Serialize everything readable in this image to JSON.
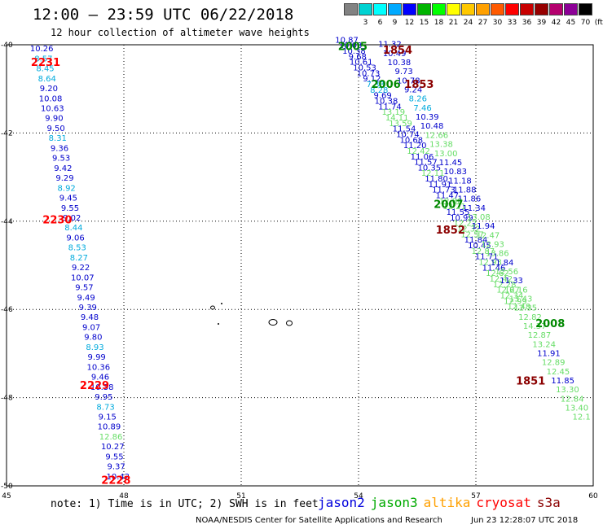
{
  "title": "12:00 – 23:59 UTC 06/22/2018",
  "subtitle": "12 hour collection of altimeter wave heights",
  "scale": {
    "unit_label": "(ft)",
    "cells": [
      {
        "label": "",
        "color": "#828282"
      },
      {
        "label": "3",
        "color": "#00d2d2"
      },
      {
        "label": "6",
        "color": "#00ffff"
      },
      {
        "label": "9",
        "color": "#00aaff"
      },
      {
        "label": "12",
        "color": "#0000ff"
      },
      {
        "label": "15",
        "color": "#00b400"
      },
      {
        "label": "18",
        "color": "#00ff00"
      },
      {
        "label": "21",
        "color": "#ffff00"
      },
      {
        "label": "24",
        "color": "#ffc800"
      },
      {
        "label": "27",
        "color": "#ffa000"
      },
      {
        "label": "30",
        "color": "#ff5a00"
      },
      {
        "label": "33",
        "color": "#ff0000"
      },
      {
        "label": "36",
        "color": "#c80000"
      },
      {
        "label": "39",
        "color": "#960000"
      },
      {
        "label": "42",
        "color": "#b4006e"
      },
      {
        "label": "45",
        "color": "#8c0096"
      },
      {
        "label": "70",
        "color": "#000000"
      }
    ]
  },
  "axes": {
    "lon_ticks": [
      "45",
      "48",
      "51",
      "54",
      "57",
      "60"
    ],
    "lat_ticks": [
      "-40",
      "-42",
      "-44",
      "-46",
      "-48",
      "-50"
    ]
  },
  "note": "note:  1) Time is in UTC; 2) SWH is in feet",
  "legend": [
    {
      "name": "jason2",
      "color": "#0000dd"
    },
    {
      "name": "jason3",
      "color": "#00aa00"
    },
    {
      "name": "altika",
      "color": "#ffa000"
    },
    {
      "name": "cryosat",
      "color": "#ff0000"
    },
    {
      "name": "s3a",
      "color": "#8b0000"
    }
  ],
  "credit": "NOAA/NESDIS Center for Satellite Applications and Research",
  "stamp": "Jun 23 12:28:07 UTC 2018",
  "colors": {
    "c": "#00aadd",
    "b": "#0000cc",
    "n": "#000080",
    "g": "#66dd66",
    "gd": "#008800",
    "r": "#ff0000",
    "m": "#8b0000"
  },
  "time_labels": [
    {
      "text": "2231",
      "lon": 46.0,
      "lat": -40.48,
      "c": "r"
    },
    {
      "text": "2230",
      "lon": 46.3,
      "lat": -44.05,
      "c": "r"
    },
    {
      "text": "2229",
      "lon": 47.25,
      "lat": -47.8,
      "c": "r"
    },
    {
      "text": "2228",
      "lon": 47.8,
      "lat": -49.95,
      "c": "r"
    },
    {
      "text": "2005",
      "lon": 53.85,
      "lat": -40.12,
      "c": "gd"
    },
    {
      "text": "2006",
      "lon": 54.7,
      "lat": -40.98,
      "c": "gd"
    },
    {
      "text": "1854",
      "lon": 55.0,
      "lat": -40.2,
      "c": "m"
    },
    {
      "text": "1853",
      "lon": 55.55,
      "lat": -40.98,
      "c": "m"
    },
    {
      "text": "2007",
      "lon": 56.3,
      "lat": -43.7,
      "c": "gd"
    },
    {
      "text": "1852",
      "lon": 56.35,
      "lat": -44.28,
      "c": "m"
    },
    {
      "text": "2008",
      "lon": 58.9,
      "lat": -46.4,
      "c": "gd"
    },
    {
      "text": "1851",
      "lon": 58.4,
      "lat": -47.7,
      "c": "m"
    }
  ],
  "tracks": [
    {
      "name": "west-track",
      "lon0": 45.9,
      "lat0": -40.15,
      "lon1": 47.85,
      "lat1": -49.85,
      "values": [
        [
          "10.26",
          "b"
        ],
        [
          "8.57",
          "c"
        ],
        [
          "8.45",
          "c"
        ],
        [
          "8.64",
          "c"
        ],
        [
          "9.20",
          "b"
        ],
        [
          "10.08",
          "b"
        ],
        [
          "10.63",
          "b"
        ],
        [
          "9.90",
          "b"
        ],
        [
          "9.50",
          "b"
        ],
        [
          "8.31",
          "c"
        ],
        [
          "9.36",
          "b"
        ],
        [
          "9.53",
          "b"
        ],
        [
          "9.42",
          "b"
        ],
        [
          "9.29",
          "b"
        ],
        [
          "8.92",
          "c"
        ],
        [
          "9.45",
          "b"
        ],
        [
          "9.55",
          "b"
        ],
        [
          "9.02",
          "b"
        ],
        [
          "8.44",
          "c"
        ],
        [
          "9.06",
          "b"
        ],
        [
          "8.53",
          "c"
        ],
        [
          "8.27",
          "c"
        ],
        [
          "9.22",
          "b"
        ],
        [
          "10.07",
          "b"
        ],
        [
          "9.57",
          "b"
        ],
        [
          "9.49",
          "b"
        ],
        [
          "9.39",
          "b"
        ],
        [
          "9.48",
          "b"
        ],
        [
          "9.07",
          "b"
        ],
        [
          "9.80",
          "b"
        ],
        [
          "8.93",
          "c"
        ],
        [
          "9.99",
          "b"
        ],
        [
          "10.36",
          "b"
        ],
        [
          "9.46",
          "b"
        ],
        [
          "10.38",
          "b"
        ],
        [
          "9.95",
          "b"
        ],
        [
          "8.73",
          "c"
        ],
        [
          "9.15",
          "b"
        ],
        [
          "10.89",
          "b"
        ],
        [
          "12.86",
          "g"
        ],
        [
          "10.27",
          "b"
        ],
        [
          "9.55",
          "b"
        ],
        [
          "9.37",
          "b"
        ],
        [
          "10.42",
          "b"
        ]
      ]
    },
    {
      "name": "center-track-a",
      "lon0": 53.7,
      "lat0": -39.95,
      "lon1": 58.1,
      "lat1": -46.0,
      "values": [
        [
          "10.87",
          "b"
        ],
        [
          "10.03",
          "b"
        ],
        [
          "10.38",
          "b"
        ],
        [
          "9.68",
          "b"
        ],
        [
          "10.61",
          "b"
        ],
        [
          "10.53",
          "b"
        ],
        [
          "10.73",
          "b"
        ],
        [
          "9.12",
          "b"
        ],
        [
          "7.33",
          "c"
        ],
        [
          "8.28",
          "c"
        ],
        [
          "9.69",
          "b"
        ],
        [
          "10.38",
          "b"
        ],
        [
          "11.74",
          "b"
        ],
        [
          "13.19",
          "g"
        ],
        [
          "14.11",
          "g"
        ],
        [
          "13.59",
          "g"
        ],
        [
          "11.54",
          "b"
        ],
        [
          "10.74",
          "b"
        ],
        [
          "10.68",
          "b"
        ],
        [
          "11.20",
          "b"
        ],
        [
          "12.42",
          "g"
        ],
        [
          "11.06",
          "b"
        ],
        [
          "11.57",
          "b"
        ],
        [
          "10.35",
          "b"
        ],
        [
          "12.11",
          "g"
        ],
        [
          "11.80",
          "b"
        ],
        [
          "11.91",
          "b"
        ],
        [
          "11.73",
          "b"
        ],
        [
          "11.47",
          "b"
        ],
        [
          "12.80",
          "g"
        ],
        [
          "12.21",
          "g"
        ],
        [
          "11.55",
          "b"
        ],
        [
          "10.99",
          "b"
        ],
        [
          "12.22",
          "g"
        ],
        [
          "12.32",
          "g"
        ],
        [
          "12.57",
          "g"
        ],
        [
          "11.84",
          "b"
        ],
        [
          "10.45",
          "b"
        ],
        [
          "12.87",
          "g"
        ],
        [
          "11.71",
          "b"
        ],
        [
          "12.93",
          "g"
        ],
        [
          "11.46",
          "b"
        ],
        [
          "12.62",
          "g"
        ],
        [
          "12.42",
          "g"
        ],
        [
          "12.28",
          "g"
        ],
        [
          "12.67",
          "g"
        ],
        [
          "12.34",
          "g"
        ],
        [
          "12.99",
          "g"
        ],
        [
          "12.48",
          "g"
        ]
      ]
    },
    {
      "name": "center-track-b",
      "lon0": 54.8,
      "lat0": -40.05,
      "lon1": 59.7,
      "lat1": -48.5,
      "values": [
        [
          "11.32",
          "b"
        ],
        [
          "10.49",
          "b"
        ],
        [
          "10.38",
          "b"
        ],
        [
          "9.73",
          "b"
        ],
        [
          "10.78",
          "b"
        ],
        [
          "9.24",
          "b"
        ],
        [
          "8.26",
          "c"
        ],
        [
          "7.46",
          "c"
        ],
        [
          "10.39",
          "b"
        ],
        [
          "10.48",
          "b"
        ],
        [
          "12.66",
          "g"
        ],
        [
          "13.38",
          "g"
        ],
        [
          "13.00",
          "g"
        ],
        [
          "11.45",
          "b"
        ],
        [
          "10.83",
          "b"
        ],
        [
          "11.18",
          "b"
        ],
        [
          "11.88",
          "b"
        ],
        [
          "11.86",
          "b"
        ],
        [
          "11.34",
          "b"
        ],
        [
          "13.08",
          "g"
        ],
        [
          "11.94",
          "b"
        ],
        [
          "12.47",
          "g"
        ],
        [
          "12.93",
          "g"
        ],
        [
          "13.86",
          "g"
        ],
        [
          "11.84",
          "b"
        ],
        [
          "12.56",
          "g"
        ],
        [
          "11.33",
          "b"
        ],
        [
          "12.16",
          "g"
        ],
        [
          "13.43",
          "g"
        ],
        [
          "12.35",
          "g"
        ],
        [
          "12.82",
          "g"
        ],
        [
          "14.37",
          "g"
        ],
        [
          "12.87",
          "g"
        ],
        [
          "13.24",
          "g"
        ],
        [
          "11.91",
          "b"
        ],
        [
          "12.89",
          "g"
        ],
        [
          "12.45",
          "g"
        ],
        [
          "11.85",
          "b"
        ],
        [
          "13.30",
          "g"
        ],
        [
          "12.84",
          "g"
        ],
        [
          "13.40",
          "g"
        ],
        [
          "12.1",
          "g"
        ]
      ]
    }
  ]
}
